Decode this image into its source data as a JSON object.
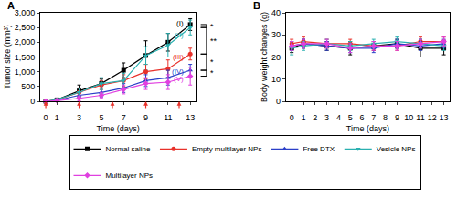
{
  "chart_data": [
    {
      "type": "line",
      "title": "A",
      "x_label": "Time (days)",
      "y_label": "Tumor size (mm³)",
      "x": [
        0,
        1,
        3,
        5,
        7,
        9,
        11,
        13
      ],
      "xlim": [
        -0.5,
        13.5
      ],
      "xticks": [
        0,
        1,
        3,
        5,
        7,
        9,
        11,
        13
      ],
      "ylim": [
        0,
        3000
      ],
      "yticks": [
        0,
        500,
        {
          "value": 1000,
          "label": "1,000"
        },
        {
          "value": 1500,
          "label": "1,500"
        },
        {
          "value": 2000,
          "label": "2,000"
        },
        {
          "value": 2500,
          "label": "2,500"
        },
        {
          "value": 3000,
          "label": "3,000"
        }
      ],
      "grid": false,
      "legend": "bottom",
      "arrow_days": [
        0,
        3,
        6,
        9,
        12
      ],
      "series": [
        {
          "name": "Normal saline",
          "color": "#000000",
          "marker": "square",
          "values": [
            0,
            50,
            350,
            600,
            1050,
            1550,
            2000,
            2600
          ],
          "error": [
            0,
            30,
            200,
            150,
            250,
            500,
            300,
            200
          ]
        },
        {
          "name": "Empty multilayer NPs",
          "color": "#e8312a",
          "marker": "circle",
          "values": [
            0,
            40,
            300,
            550,
            700,
            1000,
            1100,
            1600
          ],
          "error": [
            0,
            20,
            150,
            150,
            200,
            250,
            300,
            200
          ]
        },
        {
          "name": "Free DTX",
          "color": "#2b3fc8",
          "marker": "triangle-up",
          "values": [
            0,
            30,
            200,
            300,
            450,
            700,
            800,
            1050
          ],
          "error": [
            0,
            20,
            100,
            150,
            150,
            200,
            250,
            200
          ]
        },
        {
          "name": "Vesicle NPs",
          "color": "#2ab0b0",
          "marker": "triangle-down",
          "values": [
            0,
            60,
            300,
            600,
            700,
            1550,
            1900,
            2500
          ],
          "error": [
            0,
            30,
            150,
            200,
            250,
            300,
            400,
            250
          ]
        },
        {
          "name": "Multilayer NPs",
          "color": "#e040e0",
          "marker": "diamond",
          "values": [
            0,
            20,
            100,
            200,
            400,
            600,
            650,
            850
          ],
          "error": [
            0,
            15,
            80,
            100,
            150,
            200,
            250,
            300
          ]
        }
      ],
      "annotations": [
        {
          "text": "(I)",
          "x": 12.6,
          "y": 2650,
          "color": "#000000"
        },
        {
          "text": "(II)",
          "x": 12.6,
          "y": 2250,
          "color": "#2ab0b0"
        },
        {
          "text": "(III)",
          "x": 12.6,
          "y": 1500,
          "color": "#e8312a"
        },
        {
          "text": "(IV)",
          "x": 12.6,
          "y": 1000,
          "color": "#2b3fc8"
        },
        {
          "text": "(V)",
          "x": 12.6,
          "y": 750,
          "color": "#e040e0"
        }
      ],
      "significance": [
        {
          "between": [
            "Normal saline",
            "Vesicle NPs"
          ],
          "label": "*"
        },
        {
          "between": [
            "Vesicle NPs",
            "Empty multilayer NPs"
          ],
          "label": "**"
        },
        {
          "between": [
            "Empty multilayer NPs",
            "Free DTX"
          ],
          "label": "*"
        },
        {
          "between": [
            "Free DTX",
            "Multilayer NPs"
          ],
          "label": "*"
        }
      ]
    },
    {
      "type": "line",
      "title": "B",
      "x_label": "Time (days)",
      "y_label": "Body weight changes (g)",
      "x": [
        0,
        1,
        3,
        5,
        7,
        9,
        11,
        13
      ],
      "xlim": [
        -0.5,
        13.5
      ],
      "xticks": [
        0,
        1,
        2,
        3,
        4,
        5,
        6,
        7,
        8,
        9,
        10,
        11,
        12,
        13
      ],
      "ylim": [
        0,
        40
      ],
      "yticks": [
        0,
        10,
        20,
        30,
        40
      ],
      "grid": false,
      "series": [
        {
          "name": "Normal saline",
          "color": "#000000",
          "marker": "square",
          "values": [
            24,
            26,
            25,
            24,
            25,
            26,
            24,
            24
          ],
          "error": [
            2,
            2,
            2,
            3,
            2,
            2,
            4,
            3
          ]
        },
        {
          "name": "Empty multilayer NPs",
          "color": "#e8312a",
          "marker": "circle",
          "values": [
            26,
            27,
            26,
            26,
            25,
            25,
            27,
            27
          ],
          "error": [
            2,
            2,
            2,
            2,
            2,
            2,
            2,
            2
          ]
        },
        {
          "name": "Free DTX",
          "color": "#2b3fc8",
          "marker": "triangle-up",
          "values": [
            25,
            26,
            25,
            24,
            24,
            26,
            25,
            26
          ],
          "error": [
            2,
            2,
            2,
            2,
            2,
            2,
            2,
            2
          ]
        },
        {
          "name": "Vesicle NPs",
          "color": "#2ab0b0",
          "marker": "triangle-down",
          "values": [
            24,
            25,
            26,
            25,
            26,
            27,
            26,
            25
          ],
          "error": [
            3,
            2,
            2,
            2,
            2,
            2,
            2,
            2
          ]
        },
        {
          "name": "Multilayer NPs",
          "color": "#e040e0",
          "marker": "diamond",
          "values": [
            25,
            26,
            26,
            24,
            25,
            25,
            26,
            27
          ],
          "error": [
            2,
            2,
            2,
            2,
            2,
            2,
            2,
            2
          ]
        }
      ]
    }
  ]
}
